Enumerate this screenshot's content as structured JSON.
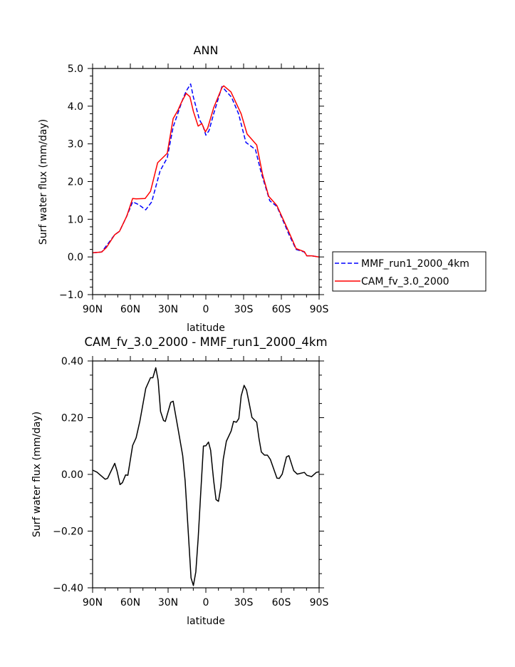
{
  "chart_data": [
    {
      "type": "line",
      "title": "ANN",
      "xlabel": "latitude",
      "ylabel": "Surf water flux (mm/day)",
      "xlim": [
        90,
        -90
      ],
      "ylim": [
        -1.0,
        5.0
      ],
      "x_ticks": [
        90,
        60,
        30,
        0,
        -30,
        -60,
        -90
      ],
      "x_tick_labels": [
        "90N",
        "60N",
        "30N",
        "0",
        "30S",
        "60S",
        "90S"
      ],
      "y_ticks": [
        -1.0,
        0.0,
        1.0,
        2.0,
        3.0,
        4.0,
        5.0
      ],
      "y_tick_labels": [
        "−1.0",
        "0.0",
        "1.0",
        "2.0",
        "3.0",
        "4.0",
        "5.0"
      ],
      "grid": false,
      "legend_placement": "outside-right",
      "series": [
        {
          "name": "MMF_run1_2000_4km",
          "color": "#0000ff",
          "dash": "dashed",
          "x": [
            90,
            82.8,
            72.4,
            68.6,
            62.9,
            58.2,
            53.5,
            47.8,
            43,
            36.4,
            30.7,
            26,
            18.4,
            15.6,
            12.1,
            9.9,
            5.1,
            2.3,
            0,
            -2.5,
            -6.2,
            -12.8,
            -20.4,
            -26,
            -31.8,
            -39.4,
            -44.1,
            -50.8,
            -56.5,
            -66,
            -71.7,
            -78.3,
            -80.2,
            -84,
            -90
          ],
          "values": [
            0.11,
            0.13,
            0.59,
            0.68,
            1.08,
            1.46,
            1.39,
            1.25,
            1.46,
            2.28,
            2.63,
            3.45,
            4.18,
            4.4,
            4.59,
            4.24,
            3.64,
            3.48,
            3.23,
            3.35,
            3.8,
            4.52,
            4.24,
            3.8,
            3.04,
            2.85,
            2.22,
            1.49,
            1.34,
            0.6,
            0.2,
            0.13,
            0.03,
            0.03,
            0.0
          ]
        },
        {
          "name": "CAM_fv_3.0_2000",
          "color": "#ff0000",
          "dash": "solid",
          "x": [
            90,
            82.8,
            79,
            72.4,
            68.6,
            62.9,
            58.2,
            55.4,
            48.3,
            44,
            38.3,
            30.7,
            26,
            22.2,
            19.3,
            15.6,
            12.7,
            9.9,
            6.1,
            3.2,
            0.4,
            -1.5,
            -6.2,
            -12.8,
            -14.2,
            -19.9,
            -28,
            -32.8,
            -40.4,
            -45.1,
            -49.9,
            -56.5,
            -66,
            -71.7,
            -78.3,
            -80.2,
            -84,
            -90
          ],
          "values": [
            0.11,
            0.13,
            0.25,
            0.59,
            0.68,
            1.08,
            1.55,
            1.54,
            1.55,
            1.74,
            2.5,
            2.75,
            3.67,
            3.89,
            4.11,
            4.34,
            4.25,
            3.86,
            3.47,
            3.54,
            3.32,
            3.42,
            3.96,
            4.49,
            4.54,
            4.38,
            3.8,
            3.26,
            2.97,
            2.18,
            1.61,
            1.36,
            0.66,
            0.22,
            0.14,
            0.03,
            0.03,
            0.0
          ]
        }
      ]
    },
    {
      "type": "line",
      "title": "CAM_fv_3.0_2000 - MMF_run1_2000_4km",
      "xlabel": "latitude",
      "ylabel": "Surf water flux (mm/day)",
      "xlim": [
        90,
        -90
      ],
      "ylim": [
        -0.4,
        0.4
      ],
      "x_ticks": [
        90,
        60,
        30,
        0,
        -30,
        -60,
        -90
      ],
      "x_tick_labels": [
        "90N",
        "60N",
        "30N",
        "0",
        "30S",
        "60S",
        "90S"
      ],
      "y_ticks": [
        -0.4,
        -0.2,
        0.0,
        0.2,
        0.4
      ],
      "y_tick_labels": [
        "−0.40",
        "−0.20",
        "0.00",
        "0.20",
        "0.40"
      ],
      "grid": false,
      "series": [
        {
          "color": "#000000",
          "dash": "solid",
          "x": [
            90,
            86.6,
            80,
            78.1,
            72.4,
            70.5,
            68.2,
            66.3,
            63.8,
            62,
            58.2,
            55.4,
            52.5,
            47.8,
            44,
            42.1,
            39.8,
            37.9,
            36,
            33.6,
            32.2,
            27.9,
            26,
            22.2,
            18.4,
            16.5,
            14.6,
            11.8,
            9.9,
            8,
            6.1,
            4.2,
            1.9,
            0,
            -2.1,
            -3.8,
            -6.2,
            -8.1,
            -10,
            -11.9,
            -13.8,
            -16.3,
            -20.1,
            -22,
            -24.3,
            -26.2,
            -28.1,
            -30.4,
            -32.3,
            -34.2,
            -36.6,
            -40.4,
            -42.3,
            -44.1,
            -46.6,
            -48.9,
            -51.2,
            -56.5,
            -58.4,
            -60.7,
            -64.1,
            -66,
            -69.8,
            -72.6,
            -78.3,
            -80.2,
            -84,
            -87.8,
            -90
          ],
          "values": [
            0.015,
            0.008,
            -0.017,
            -0.014,
            0.039,
            0.011,
            -0.036,
            -0.029,
            -0.002,
            -0.003,
            0.102,
            0.129,
            0.187,
            0.303,
            0.341,
            0.341,
            0.376,
            0.332,
            0.222,
            0.19,
            0.187,
            0.254,
            0.258,
            0.163,
            0.066,
            -0.023,
            -0.158,
            -0.365,
            -0.392,
            -0.344,
            -0.226,
            -0.074,
            0.1,
            0.101,
            0.114,
            0.085,
            -0.023,
            -0.089,
            -0.095,
            -0.044,
            0.053,
            0.117,
            0.153,
            0.187,
            0.184,
            0.197,
            0.277,
            0.314,
            0.297,
            0.256,
            0.201,
            0.184,
            0.125,
            0.079,
            0.068,
            0.068,
            0.053,
            -0.013,
            -0.014,
            0.001,
            0.062,
            0.066,
            0.013,
            0.001,
            0.007,
            -0.003,
            -0.008,
            0.007,
            0.009
          ]
        }
      ]
    }
  ]
}
